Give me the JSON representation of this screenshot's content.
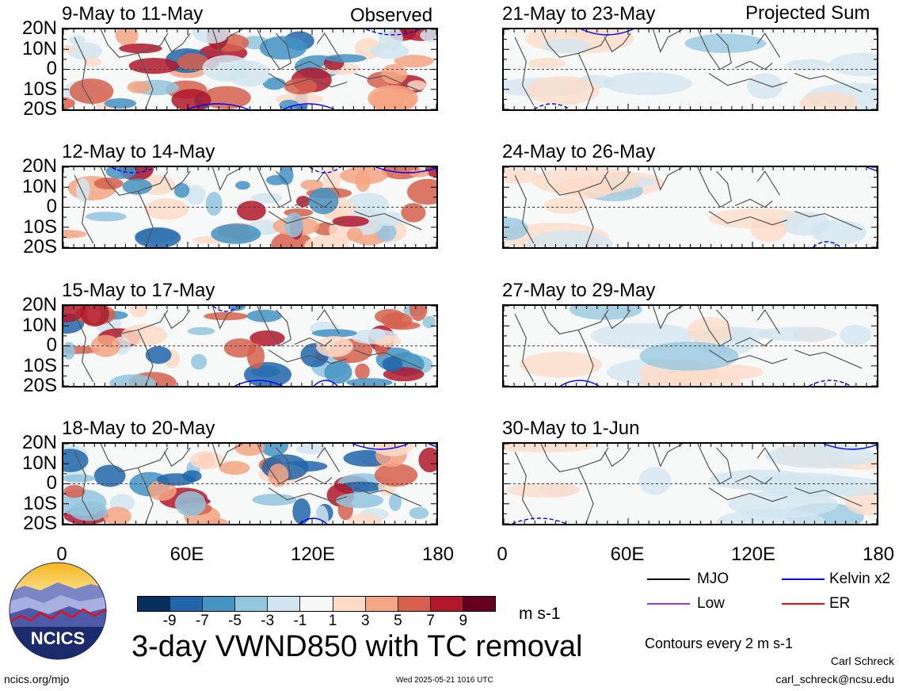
{
  "header": {
    "left_title": "Observed",
    "right_title": "Projected Sum"
  },
  "panels": [
    {
      "period": "9-May to 11-May",
      "column": "observed"
    },
    {
      "period": "12-May to 14-May",
      "column": "observed"
    },
    {
      "period": "15-May to 17-May",
      "column": "observed"
    },
    {
      "period": "18-May to 20-May",
      "column": "observed"
    },
    {
      "period": "21-May to 23-May",
      "column": "projected"
    },
    {
      "period": "24-May to 26-May",
      "column": "projected"
    },
    {
      "period": "27-May to 29-May",
      "column": "projected"
    },
    {
      "period": "30-May to 1-Jun",
      "column": "projected"
    }
  ],
  "chart_data": {
    "type": "heatmap",
    "title": "3-day VWND850 with TC removal",
    "units": "m s-1",
    "ylim": [
      "20S",
      "20N"
    ],
    "xlim": [
      0,
      180
    ],
    "y_ticks": [
      "20N",
      "10N",
      "0",
      "10S",
      "20S"
    ],
    "x_ticks": [
      "0",
      "60E",
      "120E",
      "180"
    ],
    "colorbar": {
      "labels": [
        "-9",
        "-7",
        "-5",
        "-3",
        "-1",
        "1",
        "3",
        "5",
        "7",
        "9"
      ],
      "colors": [
        "#08305e",
        "#2166ac",
        "#4393c3",
        "#92c5de",
        "#d1e5f0",
        "#f7f7f7",
        "#fddbc7",
        "#f4a582",
        "#d6604d",
        "#b2182b",
        "#67001f"
      ]
    },
    "contour_note": "Contours every 2 m s-1",
    "legend": [
      {
        "label": "MJO",
        "color": "#000000"
      },
      {
        "label": "Kelvin x2",
        "color": "#0000ff"
      },
      {
        "label": "Low",
        "color": "#9933ff"
      },
      {
        "label": "ER",
        "color": "#ff0000"
      }
    ]
  },
  "footer": {
    "logo_text": "NCICS",
    "url": "ncics.org/mjo",
    "timestamp": "Wed 2025-05-21 1016 UTC",
    "author": "Carl Schreck",
    "email": "carl_schreck@ncsu.edu"
  },
  "colors": {
    "blue_contour": "#0000ff",
    "red_contour": "#ff0000",
    "map_line": "#555555"
  }
}
